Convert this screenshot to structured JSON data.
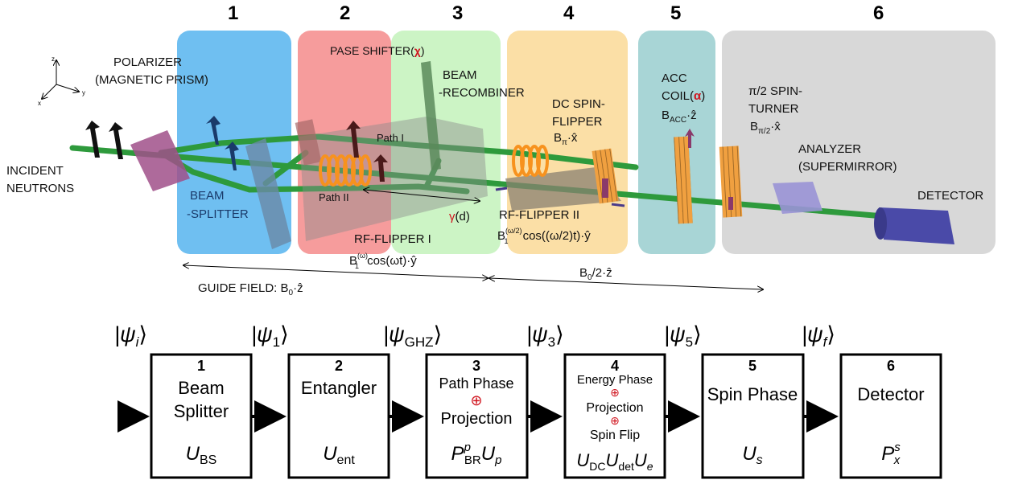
{
  "stage_numbers": [
    "1",
    "2",
    "3",
    "4",
    "5",
    "6"
  ],
  "axes": {
    "z": "z",
    "y": "y",
    "x": "x"
  },
  "labels": {
    "polarizer_line1": "POLARIZER",
    "polarizer_line2": "(MAGNETIC PRISM)",
    "incident_line1": "INCIDENT",
    "incident_line2": "NEUTRONS",
    "beam_splitter_line1": "BEAM",
    "beam_splitter_line2": "-SPLITTER",
    "phase_shifter": "PASE SHIFTER(",
    "phase_shifter_symbol": "χ",
    "phase_shifter_close": ")",
    "beam_recombiner_line1": "BEAM",
    "beam_recombiner_line2": "-RECOMBINER",
    "path_1": "Path I",
    "path_2": "Path II",
    "gamma_d_symbol": "γ",
    "gamma_d_rest": "(d)",
    "rf_flipper_1": "RF-FLIPPER I",
    "rf_flipper_1_formula_b": "B",
    "rf_flipper_1_formula_sup": "(ω)",
    "rf_flipper_1_formula_sub": "1",
    "rf_flipper_1_formula_rest": "cos(ωt)·ŷ",
    "rf_flipper_2": "RF-FLIPPER II",
    "rf_flipper_2_formula_b": "B",
    "rf_flipper_2_formula_sup": "(ω/2)",
    "rf_flipper_2_formula_sub": "1",
    "rf_flipper_2_formula_rest": "cos((ω/2)t)·ŷ",
    "dc_flipper_line1": "DC SPIN-",
    "dc_flipper_line2": "FLIPPER",
    "dc_flipper_formula_b": "B",
    "dc_flipper_formula_sub": "π",
    "dc_flipper_formula_rest": "·x̂",
    "acc_line1": "ACC",
    "acc_line2": "COIL(",
    "acc_symbol": "α",
    "acc_close": ")",
    "acc_formula_b": "B",
    "acc_formula_sub": "ACC",
    "acc_formula_rest": "·ẑ",
    "turner_line1": "π/2 SPIN-",
    "turner_line2": "TURNER",
    "turner_formula_b": "B",
    "turner_formula_sub": "π/2",
    "turner_formula_rest": "·x̂",
    "analyzer_line1": "ANALYZER",
    "analyzer_line2": "(SUPERMIRROR)",
    "detector": "DETECTOR",
    "guide_field": "GUIDE FIELD: B",
    "guide_field_sub": "0",
    "guide_field_rest": "·ẑ",
    "half_field": "B",
    "half_field_sub": "0",
    "half_field_rest": "/2·ẑ"
  },
  "states": [
    {
      "main": "|ψ",
      "sub": "i",
      "close": "⟩"
    },
    {
      "main": "|ψ",
      "sub": "1",
      "close": "⟩"
    },
    {
      "main": "|ψ",
      "sub": "GHZ",
      "close": "⟩"
    },
    {
      "main": "|ψ",
      "sub": "3",
      "close": "⟩"
    },
    {
      "main": "|ψ",
      "sub": "5",
      "close": "⟩"
    },
    {
      "main": "|ψ",
      "sub": "f",
      "close": "⟩"
    }
  ],
  "blocks": [
    {
      "num": "1",
      "line1": "Beam",
      "line2": "Splitter",
      "op_main": "U",
      "op_sub": "BS",
      "op_extra": ""
    },
    {
      "num": "2",
      "line1": "Entangler",
      "line2": "",
      "op_main": "U",
      "op_sub": "ent",
      "op_extra": ""
    },
    {
      "num": "3",
      "line1": "Path Phase",
      "oplus1": "⊕",
      "line2": "Projection",
      "op_main": "P",
      "op_sup": "p",
      "op_sub": "BR",
      "op_extra": "U",
      "op_extra_sub": "p"
    },
    {
      "num": "4",
      "line1": "Energy Phase",
      "oplus1": "⊕",
      "line2": "Projection",
      "oplus2": "⊕",
      "line3": "Spin Flip",
      "op1": "U",
      "op1_sub": "DC",
      "op2": "U",
      "op2_sub": "det",
      "op3": "U",
      "op3_sub": "e"
    },
    {
      "num": "5",
      "line1": "Spin Phase",
      "line2": "",
      "op_main": "U",
      "op_sub": "s",
      "op_extra": ""
    },
    {
      "num": "6",
      "line1": "Detector",
      "line2": "",
      "op_main": "P",
      "op_sup": "s",
      "op_sub": "x",
      "op_extra": ""
    }
  ],
  "colors": {
    "region_1": "#5fb8ef",
    "region_2": "#f48b8b",
    "region_3": "#c6f3bf",
    "region_4": "#fbdc9c",
    "region_5": "#9fd0d2",
    "region_6": "#d4d4d4",
    "beam": "#2e9a3c",
    "accent_red": "#d0141e",
    "coil_orange": "#f7921e",
    "detector_blue": "#4a4aa8",
    "analyzer_purple": "#9a94d6",
    "polarizer_magenta": "#a0508a"
  }
}
